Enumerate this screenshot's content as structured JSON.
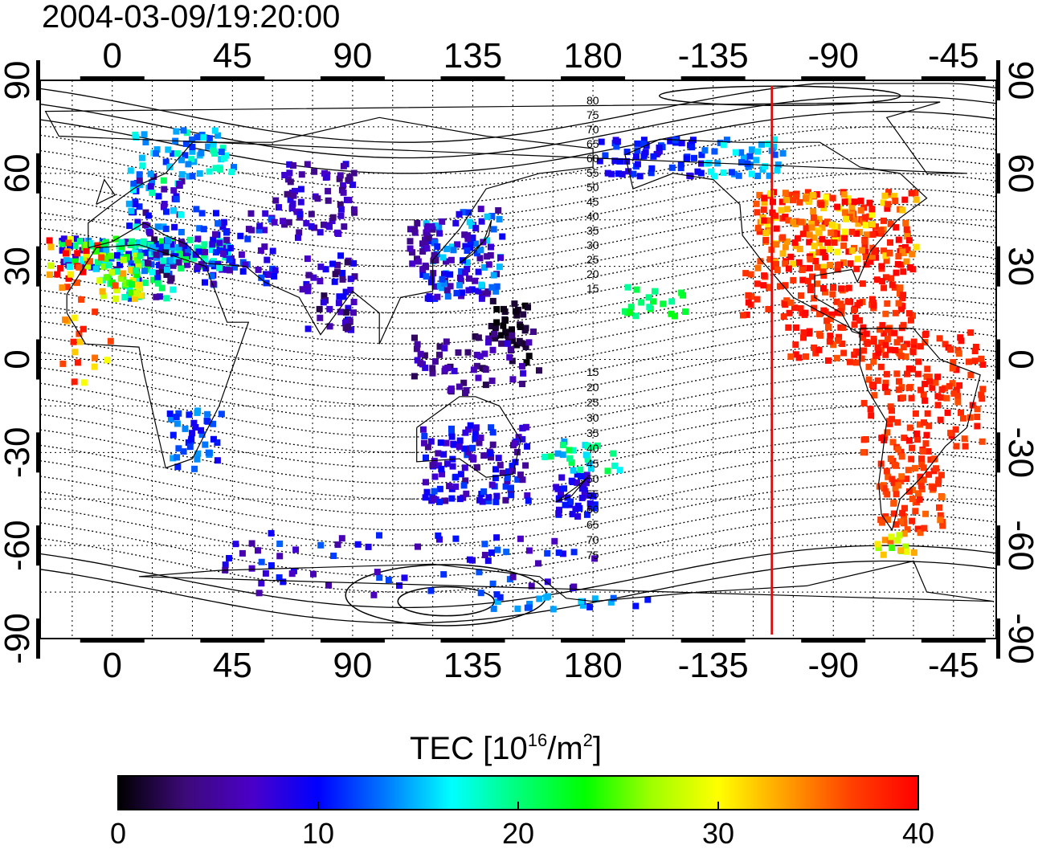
{
  "title": "2004-03-09/19:20:00",
  "map": {
    "top_lon_ticks": [
      "0",
      "45",
      "90",
      "135",
      "180",
      "-135",
      "-90",
      "-45"
    ],
    "bottom_lon_ticks": [
      "0",
      "45",
      "90",
      "135",
      "180",
      "-135",
      "-90",
      "-45"
    ],
    "left_lat_ticks": [
      "90",
      "60",
      "30",
      "0",
      "-30",
      "-60",
      "-90"
    ],
    "right_lat_ticks": [
      "90",
      "60",
      "30",
      "0",
      "-30",
      "-60",
      "-90"
    ],
    "lon_values": [
      0,
      45,
      90,
      135,
      180,
      -135,
      -90,
      -45
    ],
    "lat_values": [
      90,
      60,
      30,
      0,
      -30,
      -60,
      -90
    ],
    "north_contour_labels": [
      "80",
      "75",
      "70",
      "65",
      "60",
      "55",
      "50",
      "45",
      "40",
      "35",
      "30",
      "25",
      "20",
      "15"
    ],
    "south_contour_labels": [
      "15",
      "20",
      "25",
      "30",
      "35",
      "40",
      "45",
      "50",
      "55",
      "60",
      "65",
      "70",
      "75"
    ],
    "terminator_longitude": -113,
    "terminator_color": "#ff0000",
    "land_outline_color": "#000000"
  },
  "colorbar": {
    "title_main": "TEC  [10",
    "title_sup1": "16",
    "title_mid": "/m",
    "title_sup2": "2",
    "title_end": "]",
    "ticks": [
      "0",
      "10",
      "20",
      "30",
      "40"
    ],
    "min": 0,
    "max": 40,
    "colormap": [
      "#000000",
      "#3c0a78",
      "#4b00c8",
      "#0000ff",
      "#0078ff",
      "#00ffff",
      "#00ff78",
      "#00ff00",
      "#a0ff00",
      "#ffff00",
      "#ffa000",
      "#ff4000",
      "#ff0000"
    ]
  }
}
